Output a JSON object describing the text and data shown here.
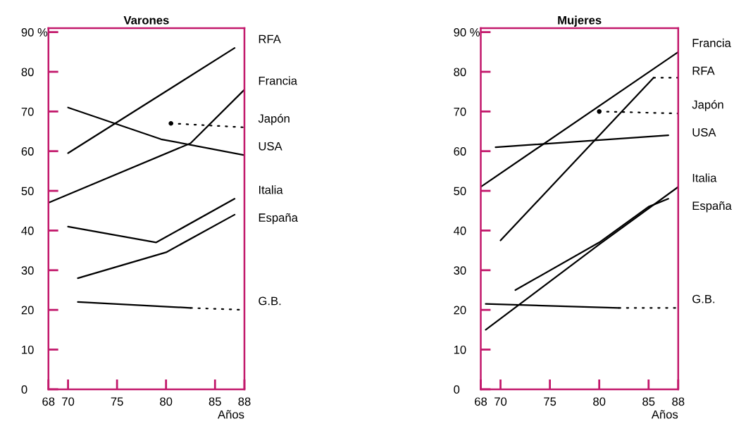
{
  "chart_data": [
    {
      "type": "line",
      "title": "Varones",
      "xlabel": "Años",
      "xlim": [
        68,
        88
      ],
      "ylim": [
        0,
        91
      ],
      "xticks": [
        68,
        70,
        75,
        80,
        85,
        88
      ],
      "yticks": [
        0,
        10,
        20,
        30,
        40,
        50,
        60,
        70,
        80,
        {
          "value": 90,
          "label": "90 %"
        }
      ],
      "grid": false,
      "legend": false,
      "marker": "none",
      "series": [
        {
          "name": "RFA",
          "color": "#000000",
          "x": [
            70,
            87
          ],
          "values": [
            59.5,
            86
          ]
        },
        {
          "name": "Francia",
          "color": "#000000",
          "x": [
            68,
            82.5,
            88
          ],
          "values": [
            47,
            62,
            75.5
          ]
        },
        {
          "color": "#000000",
          "type": "scatter",
          "x": [
            80.5
          ],
          "values": [
            67
          ]
        },
        {
          "name": "Japón",
          "color": "#000000",
          "x": [
            80.5,
            88
          ],
          "values": [
            67,
            66
          ],
          "line_style": "dotted"
        },
        {
          "name": "USA",
          "color": "#000000",
          "x": [
            70,
            79.5,
            88
          ],
          "values": [
            71,
            63,
            59
          ]
        },
        {
          "name": "Italia",
          "color": "#000000",
          "x": [
            70,
            79,
            87
          ],
          "values": [
            41,
            37,
            48
          ]
        },
        {
          "name": "España",
          "color": "#000000",
          "x": [
            71,
            80,
            87
          ],
          "values": [
            28,
            34.5,
            44
          ]
        },
        {
          "color": "#000000",
          "x": [
            71,
            82.5
          ],
          "values": [
            22,
            20.5
          ]
        },
        {
          "name": "G.B.",
          "color": "#000000",
          "x": [
            82.5,
            88
          ],
          "values": [
            20.5,
            20
          ],
          "line_style": "dotted"
        }
      ]
    },
    {
      "type": "line",
      "title": "Mujeres",
      "xlabel": "Años",
      "xlim": [
        68,
        88
      ],
      "ylim": [
        0,
        91
      ],
      "xticks": [
        68,
        70,
        75,
        80,
        85,
        88
      ],
      "yticks": [
        0,
        10,
        20,
        30,
        40,
        50,
        60,
        70,
        80,
        {
          "value": 90,
          "label": "90 %"
        }
      ],
      "grid": false,
      "legend": false,
      "marker": "none",
      "series": [
        {
          "name": "Francia",
          "color": "#000000",
          "x": [
            68,
            88
          ],
          "values": [
            51,
            85
          ]
        },
        {
          "color": "#000000",
          "x": [
            70,
            85.5
          ],
          "values": [
            37.5,
            78.5
          ]
        },
        {
          "name": "RFA",
          "color": "#000000",
          "x": [
            85.5,
            88
          ],
          "values": [
            78.5,
            78.5
          ],
          "line_style": "dotted"
        },
        {
          "color": "#000000",
          "type": "scatter",
          "x": [
            80
          ],
          "values": [
            70
          ]
        },
        {
          "name": "Japón",
          "color": "#000000",
          "x": [
            80,
            88
          ],
          "values": [
            70,
            69.5
          ],
          "line_style": "dotted"
        },
        {
          "name": "USA",
          "color": "#000000",
          "x": [
            69.5,
            87
          ],
          "values": [
            61,
            64
          ]
        },
        {
          "name": "Italia",
          "color": "#000000",
          "x": [
            68.5,
            80,
            88
          ],
          "values": [
            15,
            36.5,
            51
          ]
        },
        {
          "name": "España",
          "color": "#000000",
          "x": [
            71.5,
            80,
            85,
            87
          ],
          "values": [
            25,
            37,
            46,
            48
          ]
        },
        {
          "color": "#000000",
          "x": [
            68.5,
            82
          ],
          "values": [
            21.5,
            20.5
          ]
        },
        {
          "name": "G.B.",
          "color": "#000000",
          "x": [
            82,
            88
          ],
          "values": [
            20.5,
            20.5
          ],
          "line_style": "dotted"
        }
      ]
    }
  ]
}
